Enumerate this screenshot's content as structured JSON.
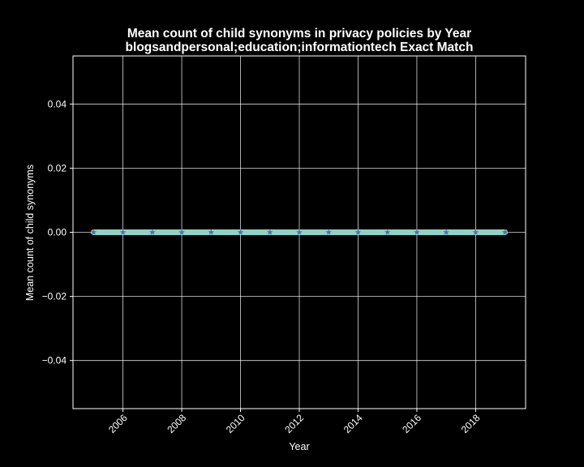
{
  "chart_data": {
    "type": "line",
    "title": "Mean count of child synonyms in privacy policies by Year",
    "subtitle": "blogsandpersonal;education;informationtech Exact Match",
    "xlabel": "Year",
    "ylabel": "Mean count of child synonyms",
    "x": [
      2005,
      2006,
      2007,
      2008,
      2009,
      2010,
      2011,
      2012,
      2013,
      2014,
      2015,
      2016,
      2017,
      2018,
      2019
    ],
    "series": [
      {
        "values": [
          0,
          0,
          0,
          0,
          0,
          0,
          0,
          0,
          0,
          0,
          0,
          0,
          0,
          0,
          0
        ],
        "color": "#8dd3c7",
        "marker_color": "#4c72b0"
      }
    ],
    "xlim": [
      2004.3,
      2019.7
    ],
    "ylim": [
      -0.055,
      0.055
    ],
    "x_ticks": [
      2006,
      2008,
      2010,
      2012,
      2014,
      2016,
      2018
    ],
    "x_tick_labels": [
      "2006",
      "2008",
      "2010",
      "2012",
      "2014",
      "2016",
      "2018"
    ],
    "y_ticks": [
      -0.04,
      -0.02,
      0.0,
      0.02,
      0.04
    ],
    "y_tick_labels": [
      "−0.04",
      "−0.02",
      "0.00",
      "0.02",
      "0.04"
    ],
    "grid": true,
    "background": "#000000",
    "foreground": "#ffffff"
  }
}
